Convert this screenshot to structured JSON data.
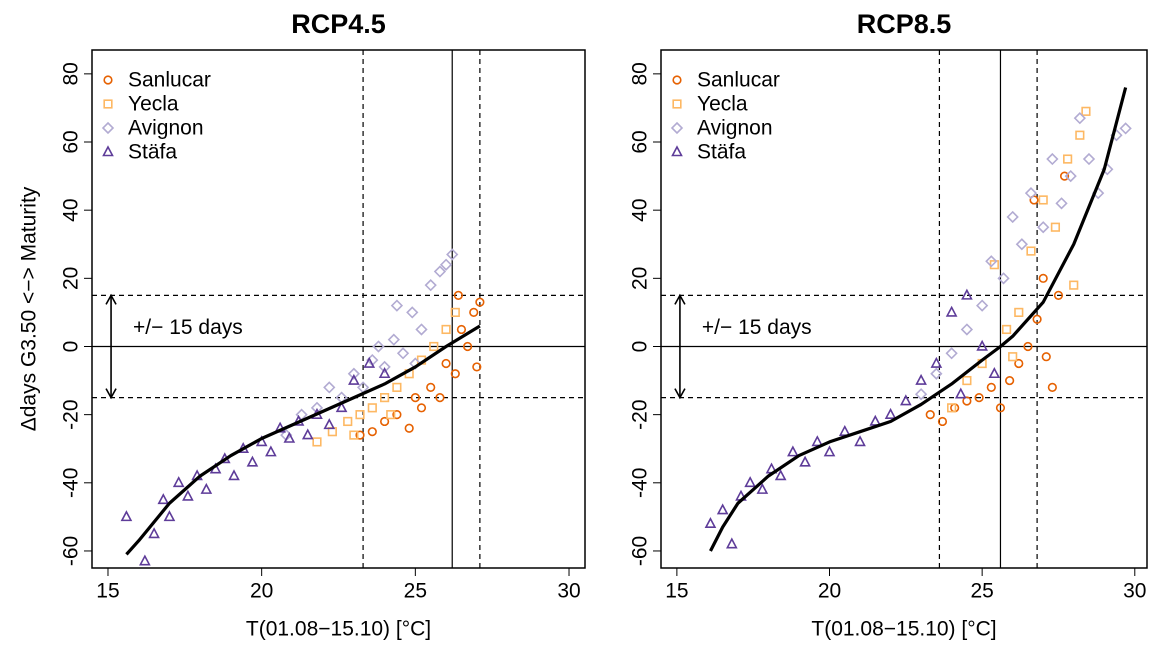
{
  "chart_data": [
    {
      "type": "scatter",
      "title": "RCP4.5",
      "xlabel": "T(01.08−15.10) [°C]",
      "ylabel": "Δdays G3.50 <−> Maturity",
      "xlim": [
        14.48,
        30.52
      ],
      "ylim": [
        -65,
        87
      ],
      "xticks": [
        15,
        20,
        25,
        30
      ],
      "yticks": [
        -60,
        -40,
        -20,
        0,
        20,
        40,
        60,
        80
      ],
      "legend": "top-left",
      "vlines": [
        {
          "value": 23.3,
          "style": "dashed"
        },
        {
          "value": 26.2,
          "style": "solid"
        },
        {
          "value": 27.1,
          "style": "dashed"
        }
      ],
      "hlines": [
        {
          "value": -15,
          "style": "dashed"
        },
        {
          "value": 0,
          "style": "solid"
        },
        {
          "value": 15,
          "style": "dashed"
        }
      ],
      "annotation": {
        "text": "+/− 15 days",
        "x": 15.1,
        "y": [
          -15,
          15
        ]
      },
      "series": [
        {
          "name": "Sanlucar",
          "color": "#e66101",
          "marker": "circle",
          "x": [
            23.2,
            23.6,
            24.0,
            24.4,
            24.8,
            25.2,
            25.5,
            25.8,
            26.0,
            26.3,
            26.5,
            26.7,
            26.9,
            27.1,
            26.4,
            27.0,
            25.0
          ],
          "values": [
            -26,
            -25,
            -22,
            -20,
            -24,
            -18,
            -12,
            -15,
            -5,
            -8,
            5,
            0,
            10,
            13,
            15,
            -6,
            -15
          ]
        },
        {
          "name": "Yecla",
          "color": "#fdb863",
          "marker": "square",
          "x": [
            21.8,
            22.3,
            22.8,
            23.2,
            23.6,
            24.0,
            24.4,
            24.8,
            25.2,
            25.6,
            26.0,
            26.3,
            23.0,
            24.2
          ],
          "values": [
            -28,
            -25,
            -22,
            -20,
            -18,
            -15,
            -12,
            -8,
            -4,
            0,
            5,
            10,
            -26,
            -20
          ]
        },
        {
          "name": "Avignon",
          "color": "#b2abd2",
          "marker": "diamond",
          "x": [
            20.8,
            21.3,
            21.8,
            22.2,
            22.6,
            23.0,
            23.3,
            23.6,
            24.0,
            24.3,
            24.6,
            24.9,
            25.2,
            25.5,
            25.8,
            26.0,
            26.2,
            24.4,
            23.8,
            25.0
          ],
          "values": [
            -26,
            -20,
            -18,
            -12,
            -15,
            -8,
            -12,
            -4,
            -6,
            2,
            -2,
            10,
            5,
            18,
            22,
            24,
            27,
            12,
            0,
            -5
          ]
        },
        {
          "name": "Stäfa",
          "color": "#5e3c99",
          "marker": "triangle",
          "x": [
            15.6,
            16.2,
            16.5,
            16.8,
            17.0,
            17.3,
            17.6,
            17.9,
            18.2,
            18.5,
            18.8,
            19.1,
            19.4,
            19.7,
            20.0,
            20.3,
            20.6,
            20.9,
            21.2,
            21.5,
            21.8,
            22.2,
            22.6,
            23.0,
            23.5,
            24.0
          ],
          "values": [
            -50,
            -63,
            -55,
            -45,
            -50,
            -40,
            -44,
            -38,
            -42,
            -36,
            -33,
            -38,
            -30,
            -34,
            -28,
            -31,
            -24,
            -27,
            -22,
            -26,
            -20,
            -23,
            -18,
            -10,
            -5,
            -8
          ]
        }
      ],
      "curve": {
        "color": "#000000",
        "x": [
          15.6,
          16,
          17,
          18,
          19,
          20,
          21,
          22,
          23,
          24,
          25,
          26,
          27.1
        ],
        "values": [
          -61,
          -57,
          -46,
          -38,
          -32,
          -27,
          -23,
          -19,
          -15,
          -11,
          -6,
          0,
          6
        ]
      }
    },
    {
      "type": "scatter",
      "title": "RCP8.5",
      "xlabel": "T(01.08−15.10) [°C]",
      "xlim": [
        14.48,
        30.4
      ],
      "ylim": [
        -65,
        87
      ],
      "xticks": [
        15,
        20,
        25,
        30
      ],
      "yticks": [
        -60,
        -40,
        -20,
        0,
        20,
        40,
        60,
        80
      ],
      "legend": "top-left",
      "vlines": [
        {
          "value": 23.6,
          "style": "dashed"
        },
        {
          "value": 25.6,
          "style": "solid"
        },
        {
          "value": 26.8,
          "style": "dashed"
        }
      ],
      "hlines": [
        {
          "value": -15,
          "style": "dashed"
        },
        {
          "value": 0,
          "style": "solid"
        },
        {
          "value": 15,
          "style": "dashed"
        }
      ],
      "annotation": {
        "text": "+/− 15 days",
        "x": 15.1,
        "y": [
          -15,
          15
        ]
      },
      "series": [
        {
          "name": "Sanlucar",
          "color": "#e66101",
          "marker": "circle",
          "x": [
            23.3,
            23.7,
            24.1,
            24.5,
            24.9,
            25.3,
            25.6,
            25.9,
            26.2,
            26.5,
            26.8,
            27.1,
            27.3,
            27.0,
            26.7,
            27.5,
            27.7
          ],
          "values": [
            -20,
            -22,
            -18,
            -16,
            -15,
            -12,
            -18,
            -10,
            -5,
            0,
            8,
            -3,
            -12,
            20,
            43,
            15,
            50
          ]
        },
        {
          "name": "Yecla",
          "color": "#fdb863",
          "marker": "square",
          "x": [
            24.0,
            24.5,
            25.0,
            25.4,
            25.8,
            26.2,
            26.6,
            27.0,
            27.4,
            27.8,
            28.2,
            28.4,
            28.0,
            26.0
          ],
          "values": [
            -18,
            -10,
            -5,
            24,
            5,
            10,
            28,
            43,
            35,
            55,
            62,
            69,
            18,
            -3
          ]
        },
        {
          "name": "Avignon",
          "color": "#b2abd2",
          "marker": "diamond",
          "x": [
            23.0,
            23.5,
            24.0,
            24.5,
            25.0,
            25.3,
            25.7,
            26.0,
            26.3,
            26.6,
            27.0,
            27.3,
            27.6,
            27.9,
            28.2,
            28.5,
            28.8,
            29.1,
            29.4,
            29.7
          ],
          "values": [
            -14,
            -8,
            -2,
            5,
            12,
            25,
            20,
            38,
            30,
            45,
            35,
            55,
            42,
            50,
            67,
            55,
            45,
            52,
            62,
            64
          ]
        },
        {
          "name": "Stäfa",
          "color": "#5e3c99",
          "marker": "triangle",
          "x": [
            16.1,
            16.5,
            16.8,
            17.1,
            17.4,
            17.8,
            18.1,
            18.4,
            18.8,
            19.2,
            19.6,
            20.0,
            20.5,
            21.0,
            21.5,
            22.0,
            22.5,
            23.0,
            23.5,
            24.0,
            24.5,
            25.0,
            25.4,
            24.3
          ],
          "values": [
            -52,
            -48,
            -58,
            -44,
            -40,
            -42,
            -36,
            -38,
            -31,
            -34,
            -28,
            -31,
            -25,
            -28,
            -22,
            -20,
            -16,
            -10,
            -5,
            10,
            15,
            0,
            -8,
            -14
          ]
        }
      ],
      "curve": {
        "color": "#000000",
        "x": [
          16.1,
          16.5,
          17,
          18,
          19,
          20,
          21,
          22,
          23,
          24,
          25,
          25.6,
          26,
          27,
          28,
          29,
          29.7
        ],
        "values": [
          -60,
          -53,
          -46,
          -38,
          -32,
          -28,
          -25,
          -22,
          -17,
          -11,
          -4,
          0,
          3,
          13,
          30,
          52,
          76
        ]
      }
    }
  ]
}
